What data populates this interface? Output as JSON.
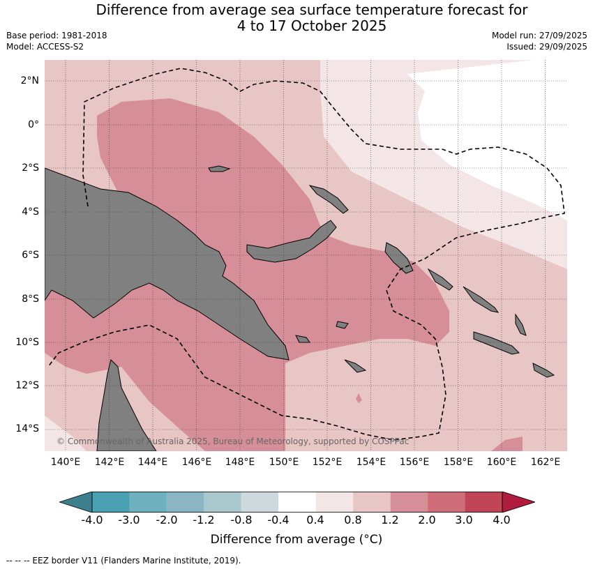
{
  "header": {
    "title_line1": "Difference from average sea surface temperature forecast for",
    "title_line2": "4 to 17 October 2025",
    "base_period": "Base period: 1981-2018",
    "model": "Model: ACCESS-S2",
    "model_run": "Model run: 27/09/2025",
    "issued": "Issued: 29/09/2025"
  },
  "map": {
    "lat_labels": [
      "2°N",
      "0°",
      "2°S",
      "4°S",
      "6°S",
      "8°S",
      "10°S",
      "12°S",
      "14°S"
    ],
    "lon_labels": [
      "140°E",
      "142°E",
      "144°E",
      "146°E",
      "148°E",
      "150°E",
      "152°E",
      "154°E",
      "156°E",
      "158°E",
      "160°E",
      "162°E"
    ],
    "copyright": "© Commonwealth of Australia 2025, Bureau of Meteorology, supported by COSPPac",
    "colors": {
      "land": "#808080",
      "c_0_4_0_8": "#f4e6e6",
      "c_0_8_1_2": "#e8c6c5",
      "c_1_2_2_0": "#d68f98",
      "c_2_0_3_0": "#cf6d78",
      "neutral": "#ffffff"
    }
  },
  "colorbar": {
    "ticks": [
      "-4.0",
      "-3.0",
      "-2.0",
      "-1.2",
      "-0.8",
      "-0.4",
      "0.4",
      "0.8",
      "1.2",
      "2.0",
      "3.0",
      "4.0"
    ],
    "colors": [
      "#3e7f8e",
      "#4aa1b4",
      "#6fb0bf",
      "#8ab7c3",
      "#a8c8cd",
      "#cdd9dc",
      "#ffffff",
      "#f4e6e6",
      "#e8c6c5",
      "#d68f98",
      "#cf6d78",
      "#c04657",
      "#b01c3d"
    ],
    "title": "Difference from average (°C)"
  },
  "footer": "--  --  -- EEZ border V11 (Flanders Marine Institute, 2019)."
}
